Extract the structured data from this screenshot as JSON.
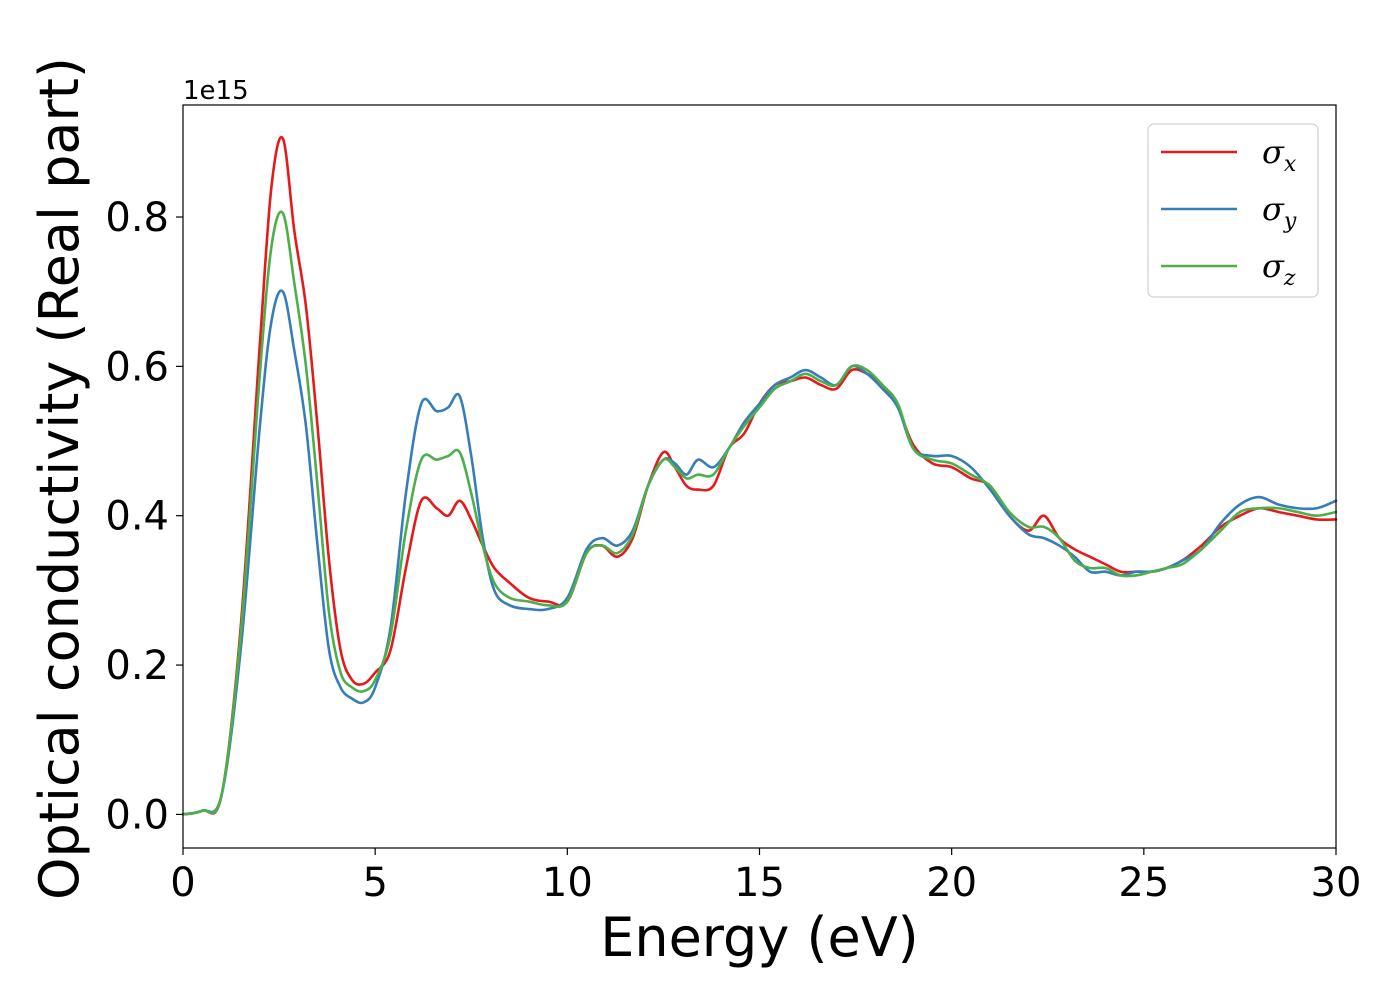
{
  "chart_data": {
    "type": "line",
    "xlabel": "Energy (eV)",
    "ylabel": "Optical conductivity (Real part)",
    "y_offset_label": "1e15",
    "xlim": [
      0,
      30
    ],
    "ylim": [
      -0.045,
      0.95
    ],
    "x_ticks": [
      "0",
      "5",
      "10",
      "15",
      "20",
      "25",
      "30"
    ],
    "y_ticks": [
      "0.0",
      "0.2",
      "0.4",
      "0.6",
      "0.8"
    ],
    "grid": false,
    "legend_position": "top-right",
    "x": [
      0,
      0.5,
      1,
      1.5,
      2,
      2.3,
      2.6,
      2.9,
      3.2,
      3.5,
      3.8,
      4.1,
      4.4,
      4.7,
      5,
      5.4,
      5.8,
      6.2,
      6.6,
      6.9,
      7.2,
      7.5,
      7.8,
      8.1,
      8.5,
      9,
      9.5,
      10,
      10.5,
      10.9,
      11.3,
      11.7,
      12.1,
      12.5,
      12.8,
      13.1,
      13.4,
      13.8,
      14.2,
      14.6,
      15,
      15.4,
      15.8,
      16.2,
      16.6,
      17,
      17.4,
      17.8,
      18.2,
      18.6,
      19,
      19.5,
      20,
      20.5,
      21,
      21.5,
      22,
      22.4,
      22.8,
      23.2,
      23.6,
      24,
      24.4,
      24.8,
      25.2,
      25.6,
      26,
      26.5,
      27,
      27.5,
      28,
      28.5,
      29,
      29.5,
      30
    ],
    "series": [
      {
        "name": "σ",
        "subscript": "x",
        "color": "#e41a1c",
        "values": [
          0,
          0.005,
          0.025,
          0.25,
          0.63,
          0.84,
          0.905,
          0.78,
          0.68,
          0.52,
          0.34,
          0.22,
          0.18,
          0.175,
          0.19,
          0.22,
          0.33,
          0.42,
          0.41,
          0.4,
          0.42,
          0.395,
          0.36,
          0.33,
          0.31,
          0.29,
          0.285,
          0.285,
          0.35,
          0.36,
          0.345,
          0.37,
          0.44,
          0.485,
          0.465,
          0.44,
          0.435,
          0.44,
          0.49,
          0.51,
          0.55,
          0.575,
          0.58,
          0.585,
          0.575,
          0.57,
          0.595,
          0.59,
          0.575,
          0.545,
          0.495,
          0.47,
          0.465,
          0.45,
          0.44,
          0.4,
          0.38,
          0.4,
          0.37,
          0.355,
          0.345,
          0.335,
          0.325,
          0.325,
          0.325,
          0.33,
          0.34,
          0.36,
          0.385,
          0.4,
          0.41,
          0.405,
          0.4,
          0.395,
          0.395
        ]
      },
      {
        "name": "σ",
        "subscript": "y",
        "color": "#377eb8",
        "values": [
          0,
          0.005,
          0.025,
          0.22,
          0.52,
          0.66,
          0.7,
          0.62,
          0.52,
          0.36,
          0.22,
          0.17,
          0.155,
          0.15,
          0.17,
          0.25,
          0.43,
          0.55,
          0.54,
          0.545,
          0.56,
          0.48,
          0.37,
          0.3,
          0.28,
          0.275,
          0.275,
          0.29,
          0.355,
          0.37,
          0.36,
          0.38,
          0.44,
          0.475,
          0.47,
          0.455,
          0.475,
          0.465,
          0.49,
          0.525,
          0.55,
          0.575,
          0.585,
          0.595,
          0.585,
          0.575,
          0.6,
          0.59,
          0.57,
          0.545,
          0.49,
          0.48,
          0.48,
          0.465,
          0.435,
          0.4,
          0.375,
          0.37,
          0.36,
          0.345,
          0.325,
          0.325,
          0.32,
          0.325,
          0.325,
          0.33,
          0.34,
          0.355,
          0.39,
          0.415,
          0.425,
          0.415,
          0.41,
          0.41,
          0.42
        ]
      },
      {
        "name": "σ",
        "subscript": "z",
        "color": "#4daf4a",
        "values": [
          0,
          0.005,
          0.025,
          0.24,
          0.59,
          0.76,
          0.805,
          0.71,
          0.6,
          0.44,
          0.27,
          0.19,
          0.17,
          0.165,
          0.18,
          0.24,
          0.38,
          0.475,
          0.475,
          0.48,
          0.485,
          0.43,
          0.36,
          0.31,
          0.29,
          0.285,
          0.28,
          0.285,
          0.35,
          0.36,
          0.35,
          0.375,
          0.44,
          0.475,
          0.465,
          0.45,
          0.455,
          0.455,
          0.49,
          0.52,
          0.545,
          0.57,
          0.58,
          0.59,
          0.58,
          0.575,
          0.6,
          0.595,
          0.575,
          0.55,
          0.49,
          0.475,
          0.47,
          0.455,
          0.44,
          0.405,
          0.385,
          0.385,
          0.37,
          0.34,
          0.33,
          0.33,
          0.32,
          0.32,
          0.325,
          0.33,
          0.335,
          0.355,
          0.38,
          0.405,
          0.41,
          0.41,
          0.405,
          0.4,
          0.405
        ]
      }
    ]
  }
}
